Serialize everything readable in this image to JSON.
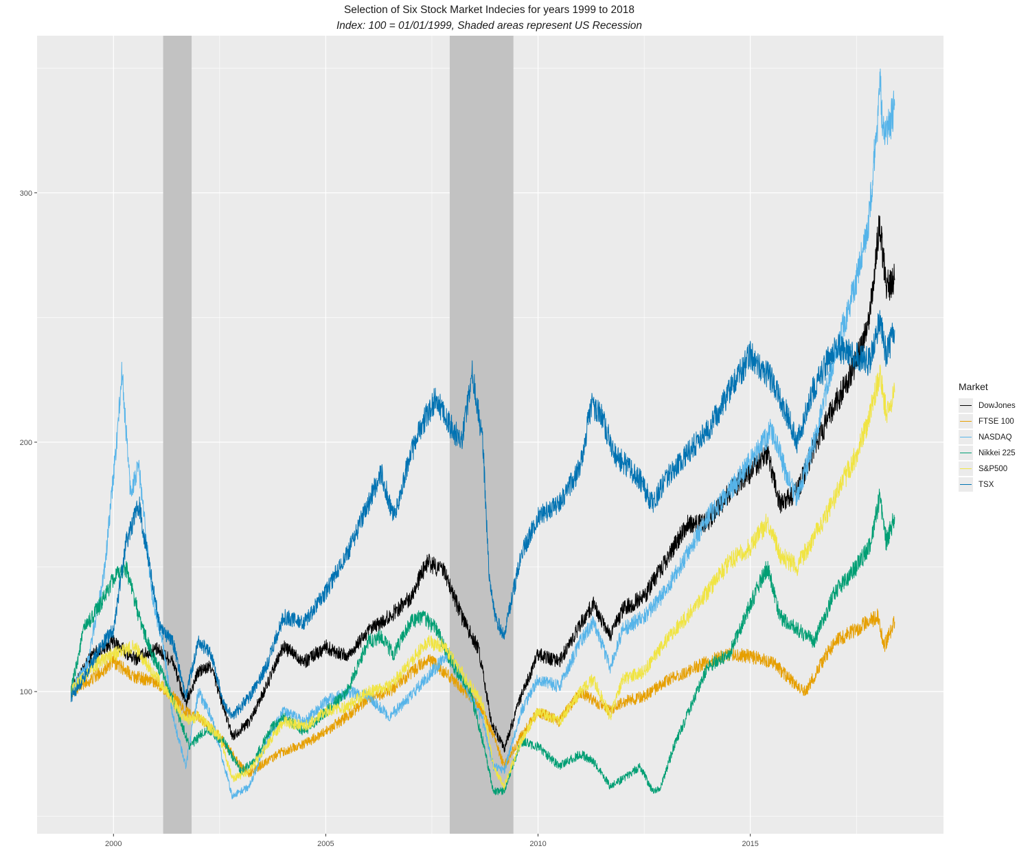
{
  "chart_data": {
    "type": "line",
    "title": "Selection of Six Stock Market Indecies for years 1999 to 2018",
    "subtitle": "Index: 100 = 01/01/1999, Shaded areas represent US Recession",
    "xlabel": "",
    "ylabel": "",
    "xlim": [
      1998.2,
      2019.55
    ],
    "ylim": [
      43,
      363
    ],
    "x_ticks": [
      2000,
      2005,
      2010,
      2015
    ],
    "x_tick_labels": [
      "2000",
      "2005",
      "2010",
      "2015"
    ],
    "y_ticks": [
      100,
      200,
      300
    ],
    "y_tick_labels": [
      "100",
      "200",
      "300"
    ],
    "grid": true,
    "legend": {
      "title": "Market",
      "position": "right"
    },
    "recessions": [
      {
        "start": 2001.17,
        "end": 2001.84
      },
      {
        "start": 2007.92,
        "end": 2009.42
      }
    ],
    "series": [
      {
        "name": "DowJones",
        "color": "#000000",
        "x": [
          1999.0,
          1999.5,
          2000.0,
          2000.5,
          2001.0,
          2001.4,
          2001.7,
          2002.0,
          2002.3,
          2002.8,
          2003.2,
          2003.6,
          2004.0,
          2004.5,
          2005.0,
          2005.5,
          2006.0,
          2006.5,
          2007.0,
          2007.4,
          2007.8,
          2008.2,
          2008.6,
          2008.9,
          2009.2,
          2009.6,
          2010.0,
          2010.5,
          2011.0,
          2011.3,
          2011.7,
          2012.0,
          2012.5,
          2013.0,
          2013.5,
          2014.0,
          2014.5,
          2015.0,
          2015.4,
          2015.7,
          2016.1,
          2016.5,
          2017.0,
          2017.5,
          2017.8,
          2018.05,
          2018.2,
          2018.4
        ],
        "y": [
          100,
          115,
          120,
          113,
          117,
          112,
          95,
          108,
          110,
          82,
          88,
          102,
          118,
          112,
          118,
          114,
          124,
          130,
          138,
          152,
          148,
          130,
          117,
          88,
          77,
          98,
          115,
          112,
          127,
          135,
          122,
          133,
          138,
          152,
          167,
          168,
          180,
          188,
          196,
          175,
          180,
          198,
          215,
          232,
          250,
          288,
          262,
          265
        ]
      },
      {
        "name": "FTSE 100",
        "color": "#E69F00",
        "x": [
          1999.0,
          1999.5,
          2000.0,
          2000.5,
          2001.0,
          2001.4,
          2001.7,
          2002.0,
          2002.5,
          2003.0,
          2003.2,
          2003.6,
          2004.0,
          2004.5,
          2005.0,
          2005.5,
          2006.0,
          2006.5,
          2007.0,
          2007.4,
          2007.8,
          2008.3,
          2008.7,
          2009.0,
          2009.2,
          2009.6,
          2010.0,
          2010.5,
          2011.0,
          2011.7,
          2012.0,
          2012.5,
          2013.0,
          2013.5,
          2014.0,
          2014.5,
          2015.0,
          2015.5,
          2016.0,
          2016.3,
          2016.8,
          2017.0,
          2017.5,
          2018.0,
          2018.15,
          2018.4
        ],
        "y": [
          100,
          105,
          112,
          106,
          104,
          98,
          92,
          90,
          82,
          70,
          67,
          72,
          76,
          79,
          84,
          90,
          97,
          100,
          107,
          113,
          108,
          100,
          92,
          80,
          70,
          82,
          92,
          88,
          100,
          92,
          96,
          98,
          104,
          108,
          112,
          115,
          114,
          112,
          104,
          100,
          115,
          120,
          125,
          130,
          118,
          128
        ]
      },
      {
        "name": "NASDAQ",
        "color": "#56B4E9",
        "x": [
          1999.0,
          1999.4,
          1999.8,
          2000.1,
          2000.2,
          2000.4,
          2000.6,
          2000.9,
          2001.2,
          2001.4,
          2001.7,
          2002.0,
          2002.3,
          2002.8,
          2003.2,
          2003.6,
          2004.0,
          2004.5,
          2005.0,
          2005.5,
          2006.0,
          2006.5,
          2007.0,
          2007.5,
          2007.9,
          2008.3,
          2008.7,
          2008.95,
          2009.2,
          2009.6,
          2010.0,
          2010.5,
          2011.0,
          2011.3,
          2011.7,
          2012.0,
          2012.5,
          2013.0,
          2013.5,
          2014.0,
          2014.5,
          2015.0,
          2015.5,
          2015.9,
          2016.1,
          2016.5,
          2017.0,
          2017.5,
          2017.8,
          2018.0,
          2018.05,
          2018.15,
          2018.4
        ],
        "y": [
          100,
          112,
          150,
          205,
          228,
          180,
          190,
          140,
          115,
          90,
          70,
          100,
          90,
          58,
          62,
          80,
          92,
          88,
          96,
          100,
          98,
          90,
          98,
          108,
          115,
          102,
          88,
          70,
          68,
          92,
          105,
          102,
          120,
          128,
          110,
          125,
          130,
          140,
          155,
          170,
          180,
          192,
          205,
          185,
          178,
          200,
          235,
          265,
          290,
          330,
          345,
          320,
          335
        ]
      },
      {
        "name": "Nikkei 225",
        "color": "#009E73",
        "x": [
          1999.0,
          1999.3,
          1999.7,
          2000.0,
          2000.3,
          2000.6,
          2000.9,
          2001.2,
          2001.5,
          2001.8,
          2002.2,
          2002.6,
          2003.0,
          2003.3,
          2003.7,
          2004.0,
          2004.5,
          2005.0,
          2005.5,
          2006.0,
          2006.3,
          2006.6,
          2007.0,
          2007.3,
          2007.6,
          2008.0,
          2008.4,
          2008.7,
          2008.95,
          2009.2,
          2009.6,
          2010.0,
          2010.5,
          2011.0,
          2011.3,
          2011.7,
          2012.0,
          2012.4,
          2012.7,
          2012.9,
          2013.2,
          2013.5,
          2014.0,
          2014.5,
          2015.0,
          2015.4,
          2015.7,
          2016.1,
          2016.5,
          2017.0,
          2017.5,
          2017.8,
          2018.05,
          2018.2,
          2018.4
        ],
        "y": [
          100,
          125,
          135,
          145,
          150,
          130,
          115,
          105,
          92,
          78,
          85,
          80,
          68,
          72,
          85,
          90,
          84,
          92,
          100,
          120,
          122,
          115,
          128,
          130,
          125,
          110,
          100,
          80,
          60,
          60,
          80,
          78,
          70,
          75,
          72,
          62,
          65,
          70,
          60,
          62,
          78,
          90,
          110,
          115,
          135,
          150,
          130,
          125,
          120,
          140,
          150,
          158,
          178,
          160,
          170
        ]
      },
      {
        "name": "S&P500",
        "color": "#F0E442",
        "x": [
          1999.0,
          1999.5,
          2000.0,
          2000.5,
          2001.0,
          2001.4,
          2001.7,
          2002.0,
          2002.5,
          2002.8,
          2003.2,
          2003.6,
          2004.0,
          2004.5,
          2005.0,
          2005.5,
          2006.0,
          2006.5,
          2007.0,
          2007.4,
          2007.8,
          2008.3,
          2008.7,
          2008.95,
          2009.2,
          2009.6,
          2010.0,
          2010.5,
          2011.0,
          2011.3,
          2011.7,
          2012.0,
          2012.5,
          2013.0,
          2013.5,
          2014.0,
          2014.5,
          2015.0,
          2015.4,
          2015.7,
          2016.1,
          2016.5,
          2017.0,
          2017.5,
          2017.8,
          2018.05,
          2018.2,
          2018.4
        ],
        "y": [
          100,
          110,
          115,
          118,
          106,
          96,
          88,
          90,
          82,
          65,
          68,
          78,
          88,
          86,
          92,
          94,
          100,
          102,
          112,
          120,
          118,
          105,
          95,
          70,
          62,
          80,
          92,
          88,
          100,
          105,
          90,
          105,
          108,
          120,
          130,
          140,
          152,
          158,
          168,
          155,
          150,
          162,
          178,
          195,
          210,
          228,
          212,
          220
        ]
      },
      {
        "name": "TSX",
        "color": "#0072B2",
        "x": [
          1999.0,
          1999.3,
          1999.7,
          2000.0,
          2000.3,
          2000.6,
          2000.9,
          2001.1,
          2001.4,
          2001.7,
          2002.0,
          2002.3,
          2002.6,
          2002.8,
          2003.2,
          2003.6,
          2004.0,
          2004.5,
          2005.0,
          2005.5,
          2006.0,
          2006.3,
          2006.6,
          2007.0,
          2007.3,
          2007.6,
          2007.8,
          2008.0,
          2008.2,
          2008.45,
          2008.7,
          2008.85,
          2009.0,
          2009.2,
          2009.6,
          2010.0,
          2010.5,
          2011.0,
          2011.25,
          2011.5,
          2011.8,
          2012.0,
          2012.4,
          2012.7,
          2013.0,
          2013.5,
          2014.0,
          2014.5,
          2015.0,
          2015.5,
          2015.9,
          2016.1,
          2016.5,
          2017.0,
          2017.5,
          2017.8,
          2018.05,
          2018.2,
          2018.4
        ],
        "y": [
          98,
          105,
          118,
          125,
          160,
          175,
          145,
          125,
          120,
          98,
          120,
          115,
          95,
          90,
          98,
          110,
          130,
          128,
          140,
          155,
          175,
          188,
          170,
          195,
          208,
          218,
          210,
          205,
          200,
          228,
          200,
          145,
          130,
          122,
          155,
          170,
          175,
          190,
          215,
          210,
          195,
          192,
          185,
          175,
          185,
          195,
          205,
          220,
          235,
          225,
          210,
          200,
          222,
          238,
          235,
          232,
          250,
          235,
          245
        ]
      }
    ]
  }
}
